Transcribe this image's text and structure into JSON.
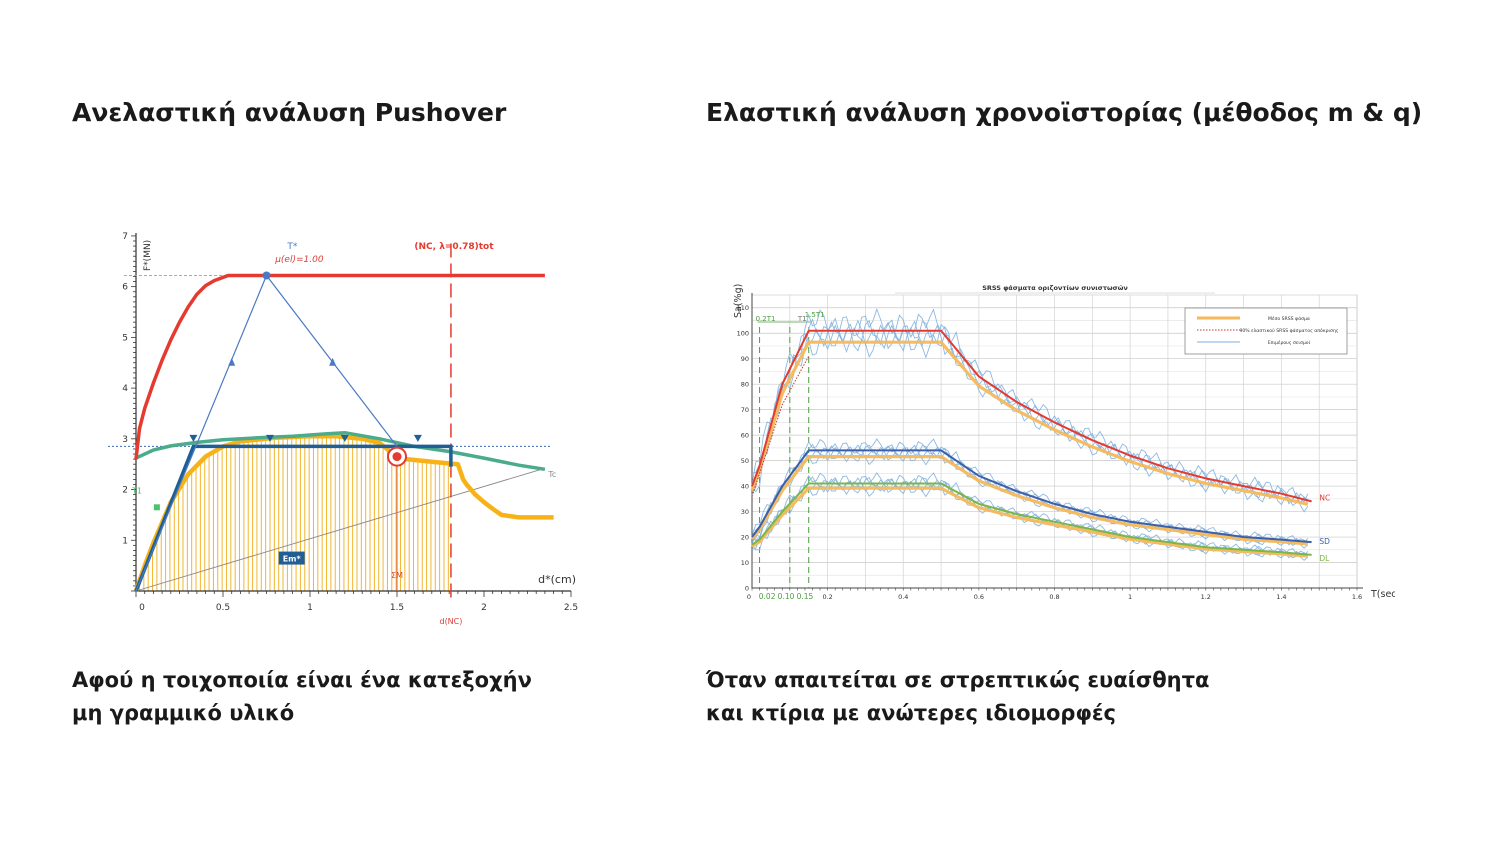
{
  "left_section": {
    "title": "Ανελαστική ανάλυση Pushover",
    "subtitle_lines": [
      "Αφού η τοιχοποιία είναι ένα κατεξοχήν",
      "μη γραμμικό υλικό"
    ]
  },
  "right_section": {
    "title": "Ελαστική ανάλυση χρονοϊστορίας (μέθοδος m & q)",
    "subtitle_lines": [
      "Όταν απαιτείται σε στρεπτικώς ευαίσθητα",
      "και κτίρια με  ανώτερες ιδιομορφές"
    ]
  },
  "chart_data": [
    {
      "type": "line",
      "title": "",
      "xlabel": "d*(cm)",
      "ylabel": "F*(MN)",
      "xlim": [
        0,
        2.5
      ],
      "ylim": [
        0,
        7
      ],
      "x_ticks": [
        "0",
        "0.5",
        "1",
        "1.5",
        "2",
        "2.5"
      ],
      "y_ticks": [
        "1",
        "2",
        "3",
        "4",
        "5",
        "6",
        "7"
      ],
      "grid": false,
      "legend": "none",
      "annotations": {
        "t_star": "T*",
        "mu_el": "μ(el)=1.00",
        "nc_lambda": "(NC, λ=0.78)tot",
        "tc": "Tc",
        "em_star": "Em*",
        "sigma_m": "ΣΜ",
        "d_nc": "d(NC)",
        "t1": "T1"
      },
      "markers": {
        "d_nc": 1.81,
        "sigma_m": 1.5,
        "target_force": 2.85
      },
      "colors": {
        "nc": "#e53a2f",
        "capacity": "#f7b218",
        "bilinear": "#1f5f96",
        "tangent": "#4bab8a",
        "tstar": "#4a7ac4"
      },
      "series": [
        {
          "key": "nc",
          "x": [
            0,
            0.02,
            0.05,
            0.1,
            0.15,
            0.2,
            0.25,
            0.3,
            0.35,
            0.4,
            0.45,
            0.53,
            2.35
          ],
          "y": [
            2.6,
            3.2,
            3.6,
            4.1,
            4.55,
            4.95,
            5.3,
            5.6,
            5.85,
            6.02,
            6.12,
            6.22,
            6.22
          ]
        },
        {
          "key": "capacity",
          "x": [
            0,
            0.05,
            0.1,
            0.15,
            0.2,
            0.3,
            0.4,
            0.5,
            0.6,
            0.8,
            1.0,
            1.15,
            1.3,
            1.4,
            1.45,
            1.5,
            1.55,
            1.7,
            1.85,
            1.88,
            1.9,
            1.95,
            2.0,
            2.05,
            2.1,
            2.2,
            2.4
          ],
          "y": [
            0,
            0.5,
            0.95,
            1.35,
            1.75,
            2.3,
            2.65,
            2.85,
            2.95,
            3.02,
            3.05,
            3.05,
            3.0,
            2.92,
            2.78,
            2.65,
            2.6,
            2.55,
            2.5,
            2.2,
            2.1,
            1.9,
            1.75,
            1.62,
            1.5,
            1.45,
            1.45
          ]
        },
        {
          "key": "bilinear",
          "x": [
            0,
            0.33,
            1.81,
            1.81
          ],
          "y": [
            0,
            2.85,
            2.85,
            2.45
          ]
        },
        {
          "key": "tangent",
          "x": [
            0,
            0.1,
            0.2,
            0.35,
            0.5,
            0.7,
            0.9,
            1.1,
            1.2,
            1.4,
            1.6,
            1.8,
            2.0,
            2.2,
            2.35
          ],
          "y": [
            2.62,
            2.78,
            2.86,
            2.93,
            2.98,
            3.02,
            3.05,
            3.1,
            3.12,
            3.0,
            2.85,
            2.75,
            2.62,
            2.48,
            2.4
          ]
        },
        {
          "key": "tstar",
          "x": [
            0,
            0.75,
            1.5
          ],
          "y": [
            0,
            6.22,
            2.85
          ]
        }
      ]
    },
    {
      "type": "line",
      "title": "SRSS φάσματα οριζοντίων συνιστωσών",
      "xlabel": "T(sec)",
      "ylabel": "Sa(%g)",
      "xlim": [
        0,
        1.6
      ],
      "ylim": [
        0,
        115
      ],
      "x_ticks": [
        "0",
        "0.2",
        "0.4",
        "0.6",
        "0.8",
        "1",
        "1.2",
        "1.4",
        "1.6"
      ],
      "y_ticks": [
        "0",
        "10",
        "20",
        "30",
        "40",
        "50",
        "60",
        "70",
        "80",
        "90",
        "100",
        "110"
      ],
      "grid": true,
      "legend": "top-right",
      "legend_entries": [
        "Μέσο SRSS φάσμα",
        "90% ελαστικού SRSS φάσματος απόκρισης",
        "Επιμέρους σεισμοί"
      ],
      "vlines": {
        "green": [
          {
            "x": 0.02,
            "label": "0.2T1"
          },
          {
            "x": 0.1,
            "label": "T1"
          },
          {
            "x": 0.15,
            "label": "1.5T1"
          }
        ],
        "axis_marks": [
          "0.02",
          "0.10",
          "0.15"
        ]
      },
      "colors": {
        "nc": "#e53a2f",
        "sd": "#3b5fa8",
        "dl": "#7ab648",
        "mean": "#f5b85a",
        "records": "#7fb1e0"
      },
      "series": [
        {
          "name": "NC",
          "x": [
            0,
            0.02,
            0.08,
            0.15,
            0.3,
            0.5,
            0.6,
            0.7,
            0.8,
            0.9,
            1.0,
            1.1,
            1.2,
            1.3,
            1.4,
            1.48
          ],
          "y": [
            40,
            48,
            80,
            101,
            101,
            101,
            83,
            73,
            65,
            58,
            52,
            47,
            43,
            40,
            37,
            34
          ]
        },
        {
          "name": "SD",
          "x": [
            0,
            0.02,
            0.08,
            0.15,
            0.3,
            0.5,
            0.6,
            0.7,
            0.8,
            0.9,
            1.0,
            1.1,
            1.2,
            1.3,
            1.4,
            1.48
          ],
          "y": [
            20,
            24,
            40,
            54,
            54,
            54,
            44,
            38,
            33,
            29,
            26,
            24,
            22,
            20,
            19,
            18
          ]
        },
        {
          "name": "DL",
          "x": [
            0,
            0.02,
            0.08,
            0.15,
            0.3,
            0.5,
            0.6,
            0.7,
            0.8,
            0.9,
            1.0,
            1.1,
            1.2,
            1.3,
            1.4,
            1.48
          ],
          "y": [
            17,
            19,
            30,
            41,
            41,
            41,
            33,
            29,
            26,
            23,
            20,
            18,
            16,
            15,
            14,
            13
          ]
        }
      ]
    }
  ]
}
